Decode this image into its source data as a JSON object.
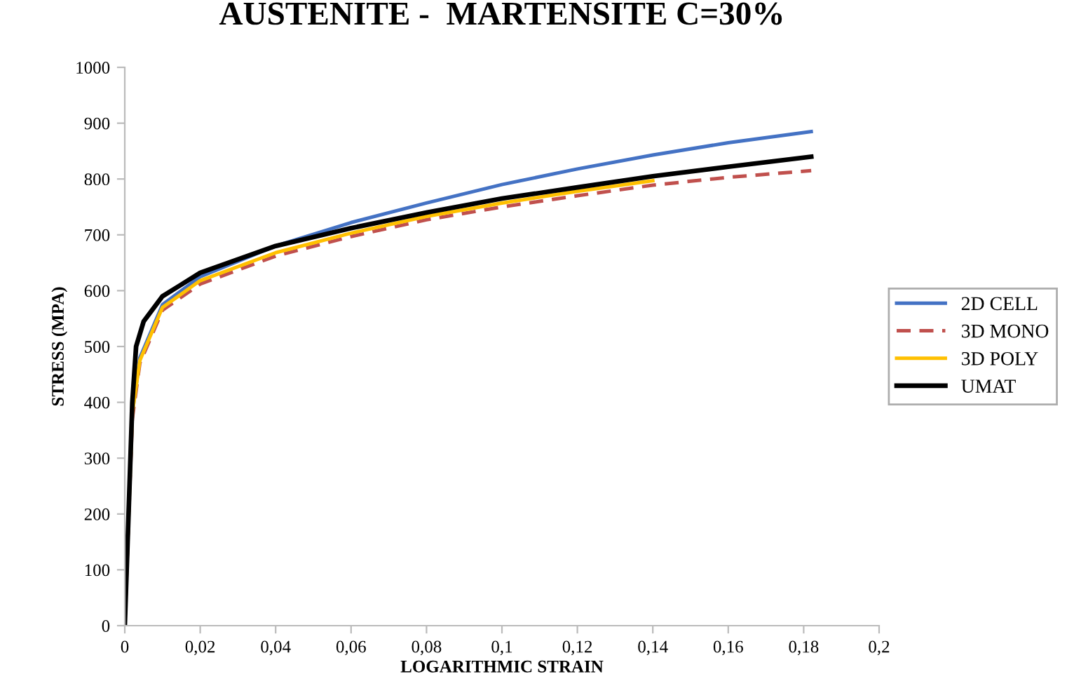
{
  "chart_data": {
    "type": "line",
    "title": "AUSTENITE -  MARTENSITE C=30%",
    "xlabel": "LOGARITHMIC STRAIN",
    "ylabel": "STRESS (MPA)",
    "xlim": [
      0,
      0.2
    ],
    "xticks": [
      0,
      {
        "value": 0.02,
        "label": "0,02"
      },
      {
        "value": 0.04,
        "label": "0,04"
      },
      {
        "value": 0.06,
        "label": "0,06"
      },
      {
        "value": 0.08,
        "label": "0,08"
      },
      {
        "value": 0.1,
        "label": "0,1"
      },
      {
        "value": 0.12,
        "label": "0,12"
      },
      {
        "value": 0.14,
        "label": "0,14"
      },
      {
        "value": 0.16,
        "label": "0,16"
      },
      {
        "value": 0.18,
        "label": "0,18"
      },
      {
        "value": 0.2,
        "label": "0,2"
      }
    ],
    "ylim": [
      0,
      1000
    ],
    "yticks": [
      0,
      100,
      200,
      300,
      400,
      500,
      600,
      700,
      800,
      900,
      1000
    ],
    "grid": false,
    "legend": "right",
    "series": [
      {
        "name": "2D CELL",
        "color": "#4472c4",
        "line_style": "solid",
        "x": [
          0,
          0.002,
          0.004,
          0.01,
          0.02,
          0.04,
          0.06,
          0.08,
          0.1,
          0.12,
          0.14,
          0.16,
          0.182
        ],
        "values": [
          0,
          380,
          480,
          575,
          625,
          680,
          722,
          757,
          790,
          818,
          843,
          865,
          885
        ]
      },
      {
        "name": "3D MONO",
        "color": "#c0504d",
        "line_style": "dashed",
        "x": [
          0,
          0.002,
          0.004,
          0.01,
          0.02,
          0.04,
          0.06,
          0.08,
          0.1,
          0.12,
          0.14,
          0.16,
          0.182
        ],
        "values": [
          0,
          370,
          470,
          565,
          612,
          662,
          697,
          727,
          750,
          770,
          789,
          803,
          815
        ]
      },
      {
        "name": "3D POLY",
        "color": "#ffc000",
        "line_style": "solid",
        "x": [
          0,
          0.002,
          0.004,
          0.01,
          0.02,
          0.04,
          0.06,
          0.08,
          0.1,
          0.12,
          0.14
        ],
        "values": [
          0,
          380,
          475,
          570,
          618,
          668,
          703,
          733,
          757,
          778,
          797
        ]
      },
      {
        "name": "UMAT",
        "color": "#000000",
        "line_style": "solid",
        "x": [
          0,
          0.002,
          0.003,
          0.005,
          0.01,
          0.02,
          0.04,
          0.06,
          0.08,
          0.1,
          0.12,
          0.14,
          0.16,
          0.182
        ],
        "values": [
          0,
          400,
          500,
          545,
          590,
          632,
          680,
          712,
          740,
          765,
          785,
          805,
          822,
          840
        ]
      }
    ]
  }
}
